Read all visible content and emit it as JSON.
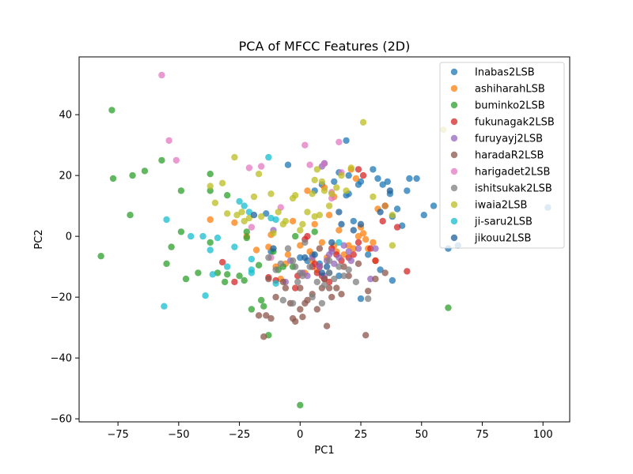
{
  "chart_data": {
    "type": "scatter",
    "title": "PCA of MFCC Features (2D)",
    "xlabel": "PC1",
    "ylabel": "PC2",
    "xlim": [
      -91,
      111
    ],
    "ylim": [
      -61,
      59
    ],
    "xticks": [
      -75,
      -50,
      -25,
      0,
      25,
      50,
      75,
      100
    ],
    "yticks": [
      -60,
      -40,
      -20,
      0,
      20,
      40
    ],
    "grid": false,
    "legend_position": "top-right",
    "series": [
      {
        "name": "Inabas2LSB",
        "color": "#1f77b4",
        "points": [
          [
            -5,
            23.5
          ],
          [
            6,
            15
          ],
          [
            9,
            17
          ],
          [
            14,
            18
          ],
          [
            16,
            21
          ],
          [
            19,
            13.5
          ],
          [
            20,
            14
          ],
          [
            19,
            31.5
          ],
          [
            24,
            17
          ],
          [
            25,
            18
          ],
          [
            30,
            22
          ],
          [
            32,
            19
          ],
          [
            34,
            17
          ],
          [
            36,
            18
          ],
          [
            37,
            14
          ],
          [
            35,
            10
          ],
          [
            40,
            9
          ],
          [
            38,
            6.5
          ],
          [
            42,
            3.5
          ],
          [
            44,
            15
          ],
          [
            45,
            19
          ],
          [
            48,
            19
          ],
          [
            51,
            7
          ],
          [
            55,
            10
          ],
          [
            61,
            -4
          ],
          [
            65,
            -3
          ],
          [
            102,
            9.5
          ],
          [
            0,
            -7
          ],
          [
            3,
            -8
          ],
          [
            5,
            -6
          ],
          [
            8,
            -9
          ],
          [
            12,
            -12
          ],
          [
            16,
            -13
          ],
          [
            22,
            5
          ],
          [
            25,
            -20.5
          ],
          [
            28,
            -6
          ],
          [
            33,
            -11
          ],
          [
            38,
            -14.5
          ],
          [
            -14,
            7.5
          ],
          [
            -12,
            -5
          ],
          [
            20,
            20
          ],
          [
            10,
            24
          ]
        ]
      },
      {
        "name": "ashiharahLSB",
        "color": "#ff7f0e",
        "points": [
          [
            -37,
            5.5
          ],
          [
            -27,
            4.5
          ],
          [
            -18,
            -4.5
          ],
          [
            -13,
            -3.5
          ],
          [
            -12,
            0.5
          ],
          [
            -10,
            -10
          ],
          [
            -5,
            -6
          ],
          [
            -3,
            5
          ],
          [
            0,
            -3
          ],
          [
            2,
            -12
          ],
          [
            4,
            -5
          ],
          [
            5,
            -8
          ],
          [
            7,
            -11
          ],
          [
            9,
            -2
          ],
          [
            11,
            -7
          ],
          [
            12,
            7
          ],
          [
            14,
            -3
          ],
          [
            15,
            -5
          ],
          [
            16,
            2
          ],
          [
            18,
            -6
          ],
          [
            20,
            -3
          ],
          [
            22,
            -4
          ],
          [
            24,
            0
          ],
          [
            25,
            3
          ],
          [
            26,
            1
          ],
          [
            27,
            -1
          ],
          [
            28,
            -4
          ],
          [
            30,
            -2
          ],
          [
            31,
            -8
          ],
          [
            32,
            9
          ],
          [
            35,
            10
          ],
          [
            -8,
            -14
          ],
          [
            3,
            15
          ],
          [
            10,
            16
          ],
          [
            14,
            13
          ],
          [
            21,
            22
          ],
          [
            23,
            19
          ],
          [
            -6,
            -9
          ],
          [
            -22,
            0
          ],
          [
            6,
            4
          ]
        ]
      },
      {
        "name": "buminko2LSB",
        "color": "#2ca02c",
        "points": [
          [
            -82,
            -6.5
          ],
          [
            -77.5,
            41.5
          ],
          [
            -77,
            19
          ],
          [
            -70,
            7
          ],
          [
            -69,
            20
          ],
          [
            -64,
            21.5
          ],
          [
            -57,
            25
          ],
          [
            -55,
            -9
          ],
          [
            -53,
            -3.5
          ],
          [
            -49,
            15
          ],
          [
            -49,
            1.5
          ],
          [
            -47,
            -14
          ],
          [
            -42,
            -12
          ],
          [
            -37,
            20.5
          ],
          [
            -37,
            15
          ],
          [
            -37,
            -2
          ],
          [
            -34,
            -12
          ],
          [
            -31,
            -15
          ],
          [
            -30,
            13.5
          ],
          [
            -30,
            -12.5
          ],
          [
            -25,
            -13
          ],
          [
            -23,
            -14.5
          ],
          [
            -22,
            1.5
          ],
          [
            -22,
            -0.5
          ],
          [
            -20,
            -24
          ],
          [
            -17,
            -9.5
          ],
          [
            -16,
            -21
          ],
          [
            -13,
            -32.5
          ],
          [
            -11,
            -5
          ],
          [
            -9,
            -11
          ],
          [
            -7,
            -10
          ],
          [
            -3,
            -10
          ],
          [
            -2,
            0
          ],
          [
            0,
            -55.5
          ],
          [
            61,
            -23.5
          ],
          [
            6,
            1.5
          ],
          [
            -15,
            -23
          ]
        ]
      },
      {
        "name": "fukunagak2LSB",
        "color": "#d62728",
        "points": [
          [
            -32,
            -8.5
          ],
          [
            -27,
            -15
          ],
          [
            -13,
            -13.5
          ],
          [
            -10,
            -14.5
          ],
          [
            -2,
            -17
          ],
          [
            2,
            -1
          ],
          [
            5,
            -10
          ],
          [
            6,
            -9
          ],
          [
            7,
            -12
          ],
          [
            9,
            -13
          ],
          [
            10,
            -14
          ],
          [
            12,
            -15
          ],
          [
            13,
            -4
          ],
          [
            15,
            -6
          ],
          [
            17,
            -8
          ],
          [
            20,
            -7
          ],
          [
            22,
            -6
          ],
          [
            24,
            -2
          ],
          [
            26,
            20
          ],
          [
            29,
            -4
          ],
          [
            31,
            -8
          ],
          [
            34,
            5
          ],
          [
            40,
            3
          ],
          [
            44,
            -11.5
          ],
          [
            -1,
            -13
          ],
          [
            8,
            -10
          ],
          [
            3,
            0
          ],
          [
            24,
            22
          ]
        ]
      },
      {
        "name": "furuyayj2LSB",
        "color": "#9467bd",
        "points": [
          [
            -11,
            2
          ],
          [
            -4,
            -8
          ],
          [
            1,
            -12
          ],
          [
            3,
            -13
          ],
          [
            5,
            -7
          ],
          [
            8,
            -10
          ],
          [
            9,
            23
          ],
          [
            11,
            -8
          ],
          [
            12,
            -6
          ],
          [
            13,
            -5
          ],
          [
            14,
            -9
          ],
          [
            16,
            -7
          ],
          [
            18,
            -3
          ],
          [
            20,
            -5
          ],
          [
            21,
            -8
          ],
          [
            24,
            -4
          ],
          [
            29,
            -14
          ],
          [
            31,
            -4
          ],
          [
            -6,
            -15
          ],
          [
            10,
            -13
          ]
        ]
      },
      {
        "name": "haradaR2LSB",
        "color": "#8c564b",
        "points": [
          [
            -17,
            -26
          ],
          [
            -15,
            -33
          ],
          [
            -14,
            -26
          ],
          [
            -12,
            -27
          ],
          [
            -10,
            -20
          ],
          [
            -7,
            -15
          ],
          [
            -4,
            -22
          ],
          [
            -3,
            -27
          ],
          [
            -2,
            -28
          ],
          [
            0,
            -24
          ],
          [
            1,
            -26.5
          ],
          [
            2,
            -22
          ],
          [
            3,
            -21
          ],
          [
            5,
            -19
          ],
          [
            7,
            -24
          ],
          [
            9,
            -17
          ],
          [
            10,
            -14
          ],
          [
            11,
            -29.5
          ],
          [
            12,
            -17
          ],
          [
            13,
            -20
          ],
          [
            15,
            -17
          ],
          [
            17,
            -19
          ],
          [
            18,
            -10
          ],
          [
            20,
            -13
          ],
          [
            24,
            -9
          ],
          [
            27,
            -32.5
          ],
          [
            28,
            -18
          ],
          [
            31,
            -14
          ],
          [
            35,
            -12
          ],
          [
            -13,
            -14
          ],
          [
            -6,
            -17
          ],
          [
            8,
            -4
          ],
          [
            0,
            -17
          ]
        ]
      },
      {
        "name": "harigadet2LSB",
        "color": "#e377c2",
        "points": [
          [
            -57,
            53
          ],
          [
            -54,
            31.5
          ],
          [
            -51,
            25
          ],
          [
            -21,
            22.5
          ],
          [
            -16,
            23
          ],
          [
            -12,
            -7
          ],
          [
            -8,
            9.5
          ],
          [
            2,
            30
          ],
          [
            4,
            23.5
          ],
          [
            10,
            24
          ],
          [
            13,
            12.5
          ],
          [
            16,
            31
          ],
          [
            17,
            21
          ],
          [
            13,
            14.5
          ],
          [
            -20,
            3
          ]
        ]
      },
      {
        "name": "ishitsukak2LSB",
        "color": "#7f7f7f",
        "points": [
          [
            -13,
            -7
          ],
          [
            -10,
            -11
          ],
          [
            -8,
            -9
          ],
          [
            -7,
            -21
          ],
          [
            -5,
            -4
          ],
          [
            -3,
            -8
          ],
          [
            -2,
            -10
          ],
          [
            -1,
            -15
          ],
          [
            0,
            -12
          ],
          [
            1,
            -13
          ],
          [
            2,
            -2
          ],
          [
            4,
            -10
          ],
          [
            5,
            -20
          ],
          [
            7,
            -15
          ],
          [
            9,
            -22
          ],
          [
            10,
            -16
          ],
          [
            12,
            -12
          ],
          [
            14,
            -14
          ],
          [
            16,
            -10
          ],
          [
            18,
            -13
          ],
          [
            20,
            -11
          ],
          [
            23,
            -15
          ],
          [
            28,
            -20.5
          ],
          [
            -3,
            -22
          ],
          [
            12,
            -8
          ]
        ]
      },
      {
        "name": "iwaia2LSB",
        "color": "#bcbd22",
        "points": [
          [
            -37,
            16.5
          ],
          [
            -35,
            11
          ],
          [
            -32,
            17.5
          ],
          [
            -30,
            7.5
          ],
          [
            -27,
            26
          ],
          [
            -26,
            7
          ],
          [
            -24,
            8
          ],
          [
            -23,
            5
          ],
          [
            -21,
            6
          ],
          [
            -19,
            13
          ],
          [
            -17,
            20.5
          ],
          [
            -16,
            6.5
          ],
          [
            -12,
            14
          ],
          [
            -11,
            1
          ],
          [
            -9,
            8
          ],
          [
            -7,
            4
          ],
          [
            -6,
            5
          ],
          [
            -3,
            12.5
          ],
          [
            -2,
            13.5
          ],
          [
            0,
            2
          ],
          [
            1,
            4
          ],
          [
            3,
            8
          ],
          [
            5,
            14
          ],
          [
            6,
            18.5
          ],
          [
            6,
            6.5
          ],
          [
            8,
            7
          ],
          [
            9,
            18
          ],
          [
            10,
            15
          ],
          [
            12,
            10
          ],
          [
            13,
            14
          ],
          [
            15,
            16
          ],
          [
            17,
            20
          ],
          [
            19,
            15
          ],
          [
            21,
            22.5
          ],
          [
            26,
            37.5
          ],
          [
            30,
            13
          ],
          [
            38,
            7
          ],
          [
            38,
            -3
          ],
          [
            59,
            35
          ],
          [
            7,
            22
          ]
        ]
      },
      {
        "name": "ji-saru2LSB",
        "color": "#17becf",
        "points": [
          [
            -56,
            -23
          ],
          [
            -55,
            5.5
          ],
          [
            -45,
            0
          ],
          [
            -40,
            0
          ],
          [
            -39,
            -19.5
          ],
          [
            -37,
            -4.5
          ],
          [
            -36,
            -12.5
          ],
          [
            -34,
            -0.5
          ],
          [
            -30,
            -10
          ],
          [
            -27,
            -3.5
          ],
          [
            -25,
            11.5
          ],
          [
            -23,
            10
          ],
          [
            -21,
            8
          ],
          [
            -20,
            -7.5
          ],
          [
            -20,
            -11
          ],
          [
            -13,
            26
          ],
          [
            -12,
            6
          ],
          [
            -10,
            5.5
          ],
          [
            -10,
            -15.5
          ],
          [
            -20,
            -12
          ],
          [
            16,
            -2
          ]
        ]
      },
      {
        "name": "jikouu2LSB",
        "color": "#1f5f99",
        "points": [
          [
            -19,
            7
          ],
          [
            -11,
            -4
          ],
          [
            2,
            -7
          ],
          [
            6,
            -6
          ],
          [
            9,
            -12
          ],
          [
            11,
            -10
          ],
          [
            13,
            -2
          ],
          [
            17,
            4
          ],
          [
            22,
            2
          ],
          [
            25,
            4
          ],
          [
            33,
            8
          ],
          [
            37,
            15
          ],
          [
            16,
            8
          ]
        ]
      }
    ]
  }
}
